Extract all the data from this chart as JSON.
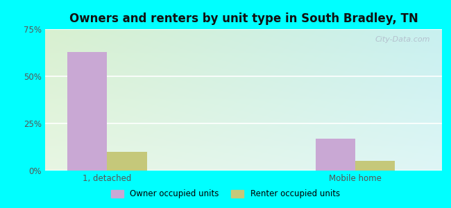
{
  "title": "Owners and renters by unit type in South Bradley, TN",
  "categories": [
    "1, detached",
    "Mobile home"
  ],
  "owner_values": [
    63.0,
    17.0
  ],
  "renter_values": [
    10.0,
    5.0
  ],
  "owner_color": "#c9a8d4",
  "renter_color": "#c5c87a",
  "ylim": [
    0,
    75
  ],
  "yticks": [
    0,
    25,
    50,
    75
  ],
  "ytick_labels": [
    "0%",
    "25%",
    "50%",
    "75%"
  ],
  "bar_width": 0.32,
  "outer_bg": "#00ffff",
  "watermark": "City-Data.com",
  "legend_owner": "Owner occupied units",
  "legend_renter": "Renter occupied units",
  "group_positions": [
    0.5,
    2.5
  ],
  "xlim": [
    0,
    3.2
  ]
}
